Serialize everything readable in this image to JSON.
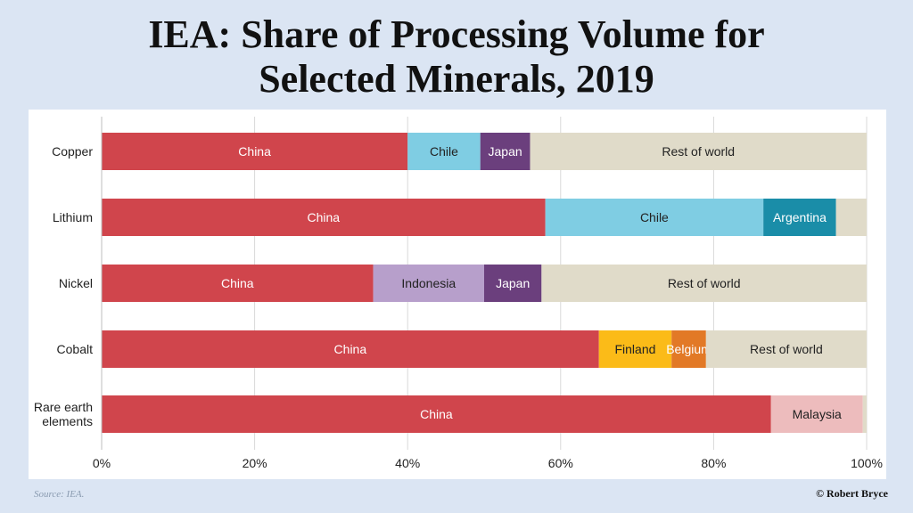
{
  "slide": {
    "title_line1": "IEA: Share of Processing Volume for",
    "title_line2": "Selected Minerals, 2019",
    "source": "Source: IEA.",
    "credit": "© Robert Bryce"
  },
  "chart_data": {
    "type": "bar",
    "orientation": "horizontal",
    "stacked": true,
    "title": "IEA: Share of Processing Volume for Selected Minerals, 2019",
    "xlabel": "",
    "ylabel": "",
    "xlim": [
      0,
      100
    ],
    "x_ticks": [
      "0%",
      "20%",
      "40%",
      "60%",
      "80%",
      "100%"
    ],
    "grid": true,
    "legend": "none (segments labeled inline)",
    "colors": {
      "China": "#d0454c",
      "Chile": "#7fcde3",
      "Japan": "#6b3f7d",
      "Argentina": "#1a8da8",
      "Indonesia": "#b79fcb",
      "Finland": "#fbbb18",
      "Belgium": "#e27926",
      "Malaysia": "#edbcbd",
      "Rest of world": "#e0dbc9"
    },
    "categories": [
      {
        "label": [
          "Copper"
        ],
        "segments": [
          {
            "name": "China",
            "value": 40
          },
          {
            "name": "Chile",
            "value": 9.5
          },
          {
            "name": "Japan",
            "value": 6.5
          },
          {
            "name": "Rest of world",
            "value": 44
          }
        ]
      },
      {
        "label": [
          "Lithium"
        ],
        "segments": [
          {
            "name": "China",
            "value": 58
          },
          {
            "name": "Chile",
            "value": 28.5
          },
          {
            "name": "Argentina",
            "value": 9.5
          },
          {
            "name": "Rest of world",
            "value": 4,
            "labeled": false
          }
        ]
      },
      {
        "label": [
          "Nickel"
        ],
        "segments": [
          {
            "name": "China",
            "value": 35.5
          },
          {
            "name": "Indonesia",
            "value": 14.5
          },
          {
            "name": "Japan",
            "value": 7.5
          },
          {
            "name": "Rest of world",
            "value": 42.5
          }
        ]
      },
      {
        "label": [
          "Cobalt"
        ],
        "segments": [
          {
            "name": "China",
            "value": 65
          },
          {
            "name": "Finland",
            "value": 9.5
          },
          {
            "name": "Belgium",
            "value": 4.5
          },
          {
            "name": "Rest of world",
            "value": 21
          }
        ]
      },
      {
        "label": [
          "Rare earth",
          "elements"
        ],
        "segments": [
          {
            "name": "China",
            "value": 87.5
          },
          {
            "name": "Malaysia",
            "value": 12
          },
          {
            "name": "Rest of world",
            "value": 0.5,
            "labeled": false
          }
        ]
      }
    ]
  }
}
